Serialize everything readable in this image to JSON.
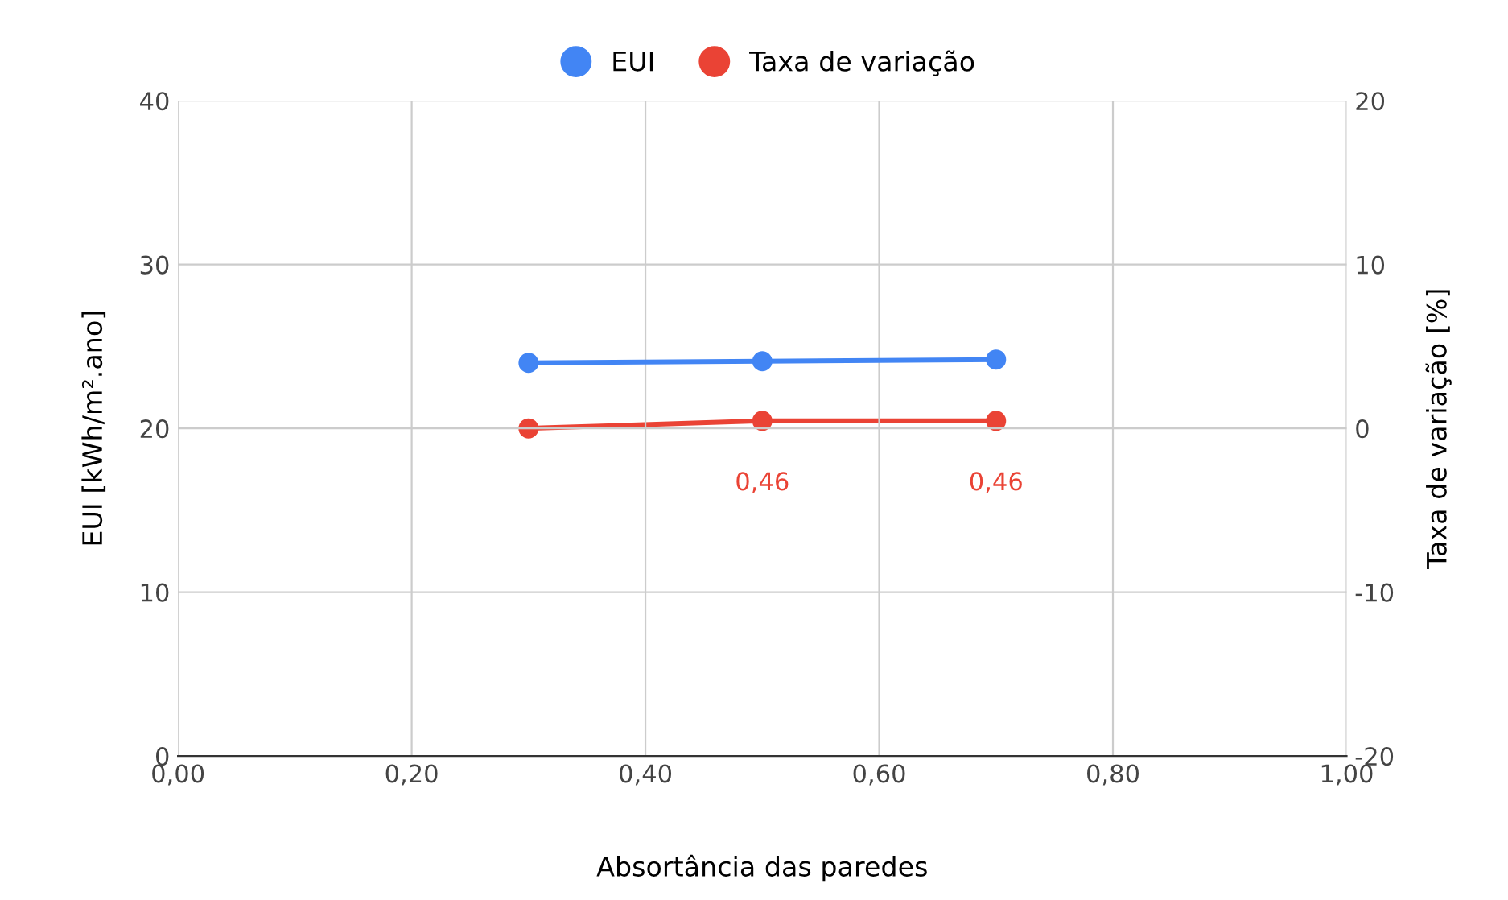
{
  "chart_data": {
    "type": "line",
    "x": [
      0.3,
      0.5,
      0.7
    ],
    "xlabel": "Absortância das paredes",
    "ylabel": "EUI [kWh/m².ano]",
    "y2label": "Taxa de variação [%]",
    "series": [
      {
        "name": "EUI",
        "color": "#4285f4",
        "values": [
          24.0,
          24.1,
          24.2
        ]
      },
      {
        "name": "Taxa de variação",
        "color": "#ea4335",
        "values": [
          0,
          0.46,
          0.46
        ],
        "axis": "y2",
        "value_labels": [
          null,
          "0,46",
          "0,46"
        ]
      }
    ],
    "xlim": [
      0,
      1
    ],
    "xticks": [
      {
        "value": 0,
        "label": "0,00"
      },
      {
        "value": 0.2,
        "label": "0,20"
      },
      {
        "value": 0.4,
        "label": "0,40"
      },
      {
        "value": 0.6,
        "label": "0,60"
      },
      {
        "value": 0.8,
        "label": "0,80"
      },
      {
        "value": 1,
        "label": "1,00"
      }
    ],
    "ylim": [
      0,
      40
    ],
    "yticks": [
      0,
      10,
      20,
      30,
      40
    ],
    "y2lim": [
      -20,
      20
    ],
    "y2ticks": [
      {
        "value": -20,
        "label": "-20"
      },
      {
        "value": -10,
        "label": "-10"
      },
      0,
      10,
      20
    ],
    "grid": true,
    "legend": "top",
    "marker": "circle",
    "line_style": "solid"
  }
}
